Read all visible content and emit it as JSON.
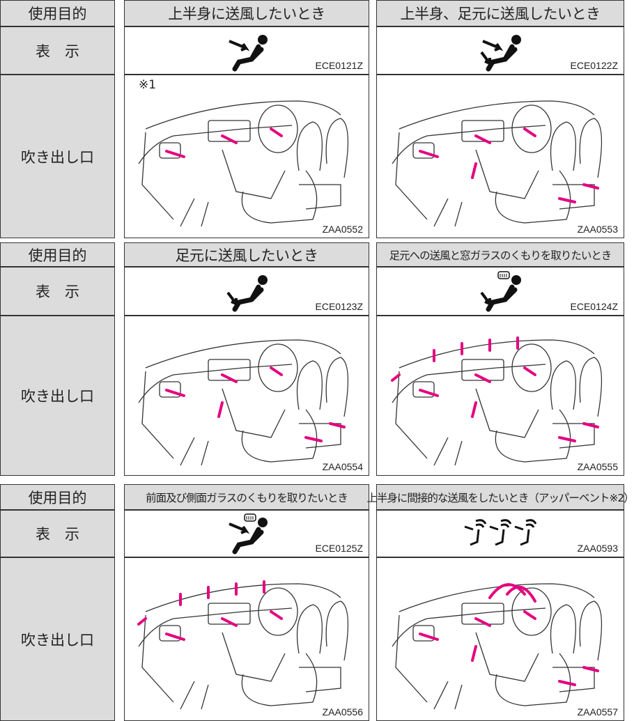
{
  "blocks": [
    {
      "purpose_label": "使用目的",
      "headings": [
        "上半身に送風したいとき",
        "上半身、足元に送風したいとき"
      ],
      "display_label": "表　示",
      "display_codes": [
        "ECE0121Z",
        "ECE0122Z"
      ],
      "outlet_label": "吹き出し口",
      "image_codes": [
        "ZAA0552",
        "ZAA0553"
      ],
      "note": "※1"
    },
    {
      "purpose_label": "使用目的",
      "headings": [
        "足元に送風したいとき",
        "足元への送風と窓ガラスのくもりを取りたいとき"
      ],
      "display_label": "表　示",
      "display_codes": [
        "ECE0123Z",
        "ECE0124Z"
      ],
      "outlet_label": "吹き出し口",
      "image_codes": [
        "ZAA0554",
        "ZAA0555"
      ]
    },
    {
      "purpose_label": "使用目的",
      "headings": [
        "前面及び側面ガラスのくもりを取りたいとき",
        "上半身に間接的な送風をしたいとき（アッパーベント※2）"
      ],
      "display_label": "表　示",
      "display_codes": [
        "ECE0125Z",
        "ZAA0593"
      ],
      "outlet_label": "吹き出し口",
      "image_codes": [
        "ZAA0556",
        "ZAA0557"
      ]
    }
  ]
}
